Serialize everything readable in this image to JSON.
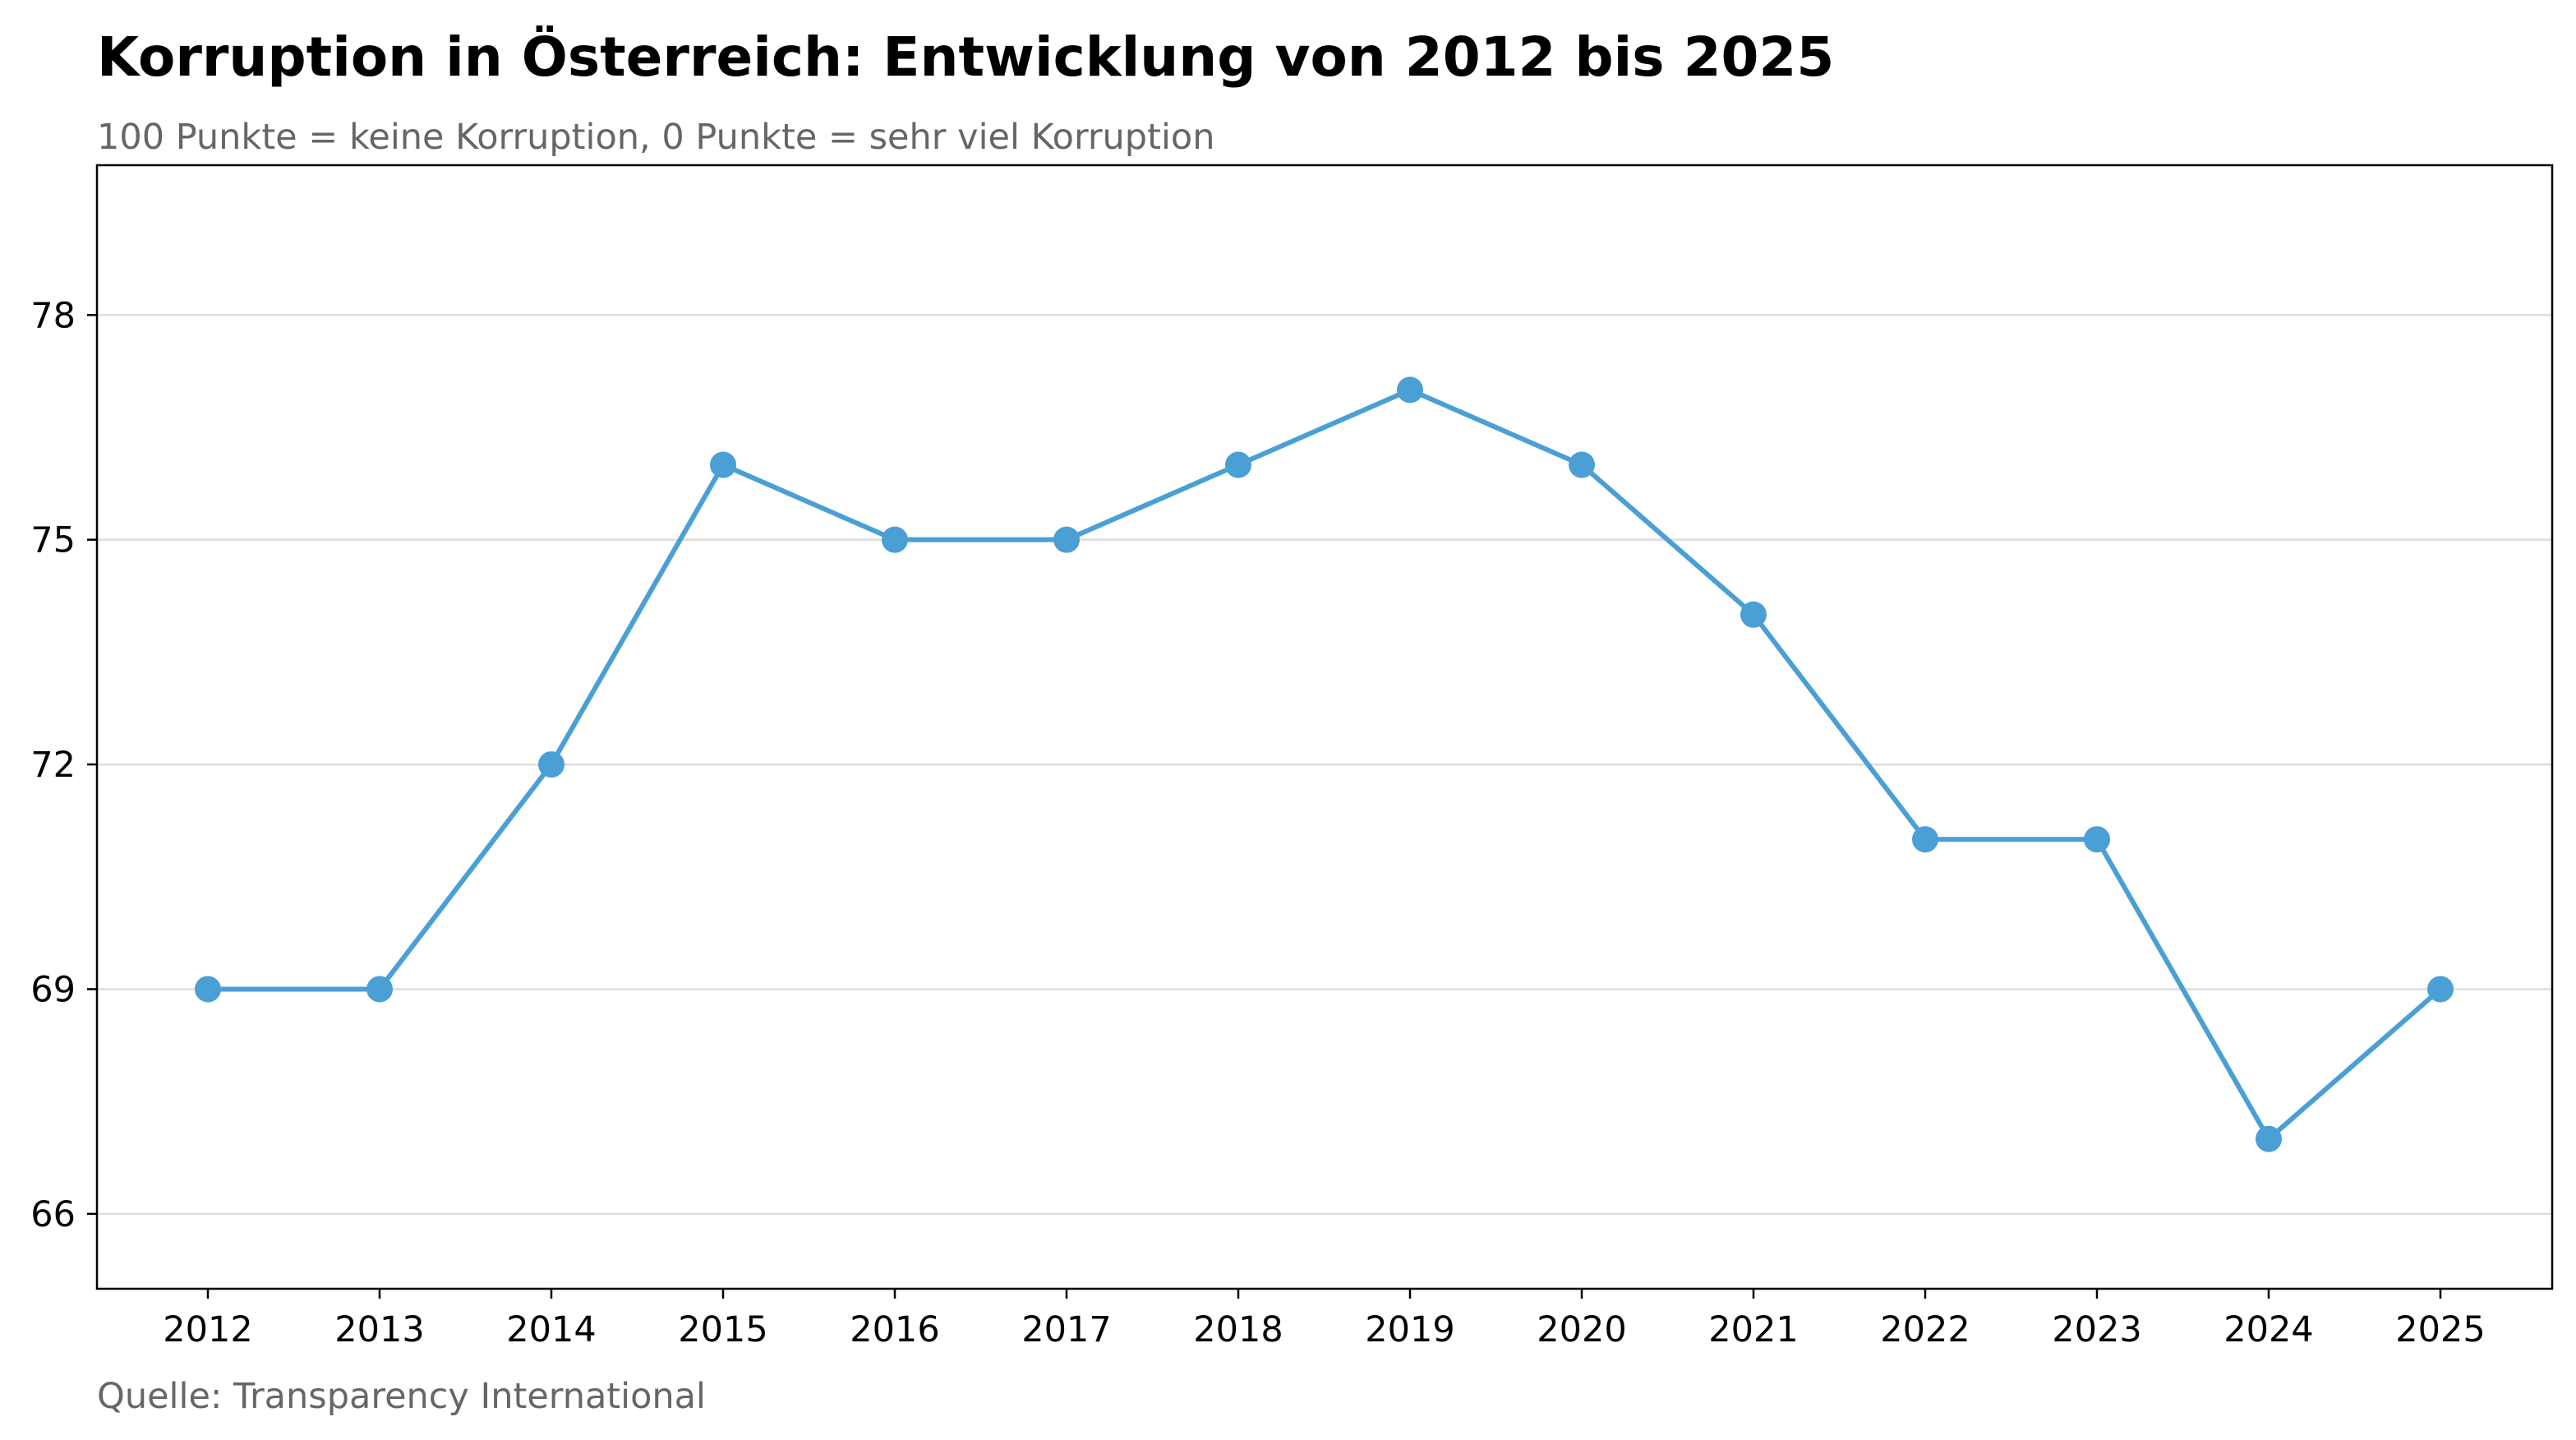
{
  "chart_data": {
    "type": "line",
    "title": "Korruption in Österreich: Entwicklung von 2012 bis 2025",
    "subtitle": "100 Punkte = keine Korruption, 0 Punkte = sehr viel Korruption",
    "source": "Quelle: Transparency International",
    "xlabel": "",
    "ylabel": "",
    "x": [
      "2012",
      "2013",
      "2014",
      "2015",
      "2016",
      "2017",
      "2018",
      "2019",
      "2020",
      "2021",
      "2022",
      "2023",
      "2024",
      "2025"
    ],
    "values": [
      69,
      69,
      72,
      76,
      75,
      75,
      76,
      77,
      76,
      74,
      71,
      71,
      67,
      69
    ],
    "yticks": [
      66,
      69,
      72,
      75,
      78
    ],
    "ylim": [
      65,
      80
    ],
    "grid": "horizontal",
    "legend": "none",
    "colors": {
      "line": "#4a9fd5",
      "grid": "#dddddd",
      "axis": "#000000"
    }
  }
}
